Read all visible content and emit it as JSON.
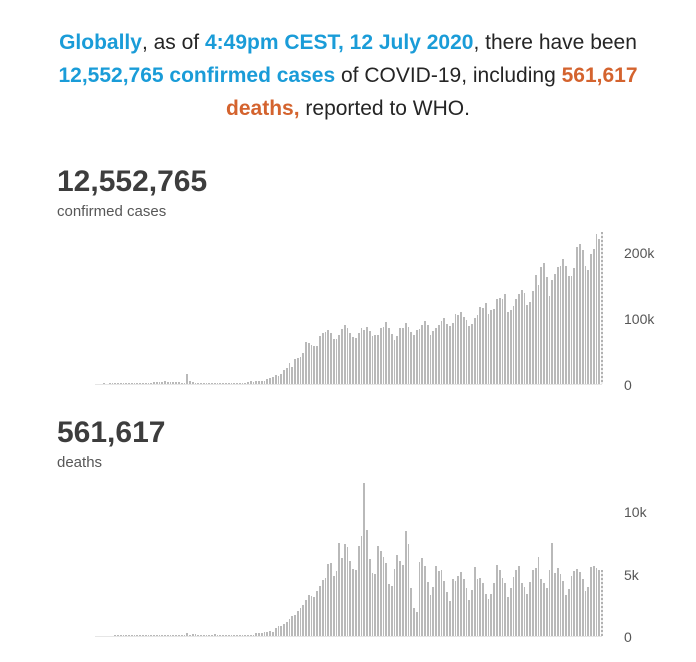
{
  "headline": {
    "segments": [
      {
        "text": "Globally",
        "style": "blue"
      },
      {
        "text": ", as of ",
        "style": "plain"
      },
      {
        "text": "4:49pm CEST, 12 July 2020",
        "style": "blue"
      },
      {
        "text": ", there have been ",
        "style": "plain"
      },
      {
        "text": "12,552,765 confirmed cases",
        "style": "blue"
      },
      {
        "text": " of COVID-19, including ",
        "style": "plain"
      },
      {
        "text": "561,617 deaths,",
        "style": "orange"
      },
      {
        "text": " reported to WHO.",
        "style": "plain"
      }
    ]
  },
  "stats": [
    {
      "value": "12,552,765",
      "label": "confirmed cases"
    },
    {
      "value": "561,617",
      "label": "deaths"
    }
  ],
  "colors": {
    "accent_blue": "#1a9cd8",
    "accent_orange": "#d4632e",
    "bar_fill": "#b9b9b9",
    "stat_text": "#3d3d3d",
    "axis_label": "#565656",
    "body_text": "#252525"
  },
  "chart_data": [
    {
      "type": "bar",
      "title": "12,552,765",
      "subtitle": "confirmed cases",
      "xlabel": "",
      "ylabel": "",
      "x_tick_labels_visible": false,
      "grid": false,
      "legend": false,
      "y_axis_side": "right",
      "ylim": [
        0,
        235000
      ],
      "y_ticks": [
        {
          "value": 0,
          "label": "0"
        },
        {
          "value": 100000,
          "label": "100k"
        },
        {
          "value": 200000,
          "label": "200k"
        }
      ],
      "last_bar_hatched": true,
      "values": [
        0,
        0,
        0,
        1,
        0,
        3,
        17,
        59,
        77,
        60,
        150,
        140,
        260,
        460,
        700,
        780,
        1750,
        1450,
        1800,
        2000,
        2100,
        2600,
        2800,
        2600,
        3200,
        3900,
        3700,
        3200,
        2700,
        3000,
        2600,
        2100,
        2000,
        15150,
        4050,
        2600,
        2200,
        2100,
        1900,
        1800,
        600,
        900,
        1000,
        700,
        600,
        500,
        900,
        1000,
        1350,
        1750,
        1750,
        1600,
        1850,
        2200,
        2250,
        2900,
        4000,
        3650,
        3900,
        4000,
        4600,
        4700,
        7500,
        9750,
        10950,
        13900,
        11500,
        15100,
        20600,
        24200,
        32000,
        26100,
        37200,
        39800,
        41600,
        46500,
        63200,
        62500,
        58700,
        57600,
        57600,
        72800,
        76600,
        79300,
        82000,
        77200,
        68800,
        68300,
        73600,
        82800,
        89700,
        85500,
        76900,
        71800,
        70100,
        76600,
        84800,
        81600,
        85700,
        81100,
        73300,
        74000,
        73900,
        84300,
        87200,
        93700,
        85000,
        76500,
        66300,
        73000,
        84800,
        84600,
        91900,
        86100,
        78800,
        74300,
        81500,
        83500,
        89300,
        95800,
        88900,
        74800,
        80300,
        84200,
        89100,
        96000,
        100000,
        91500,
        87700,
        92100,
        106000,
        104500,
        109500,
        101500,
        96400,
        88100,
        91700,
        100300,
        104500,
        116100,
        114900,
        122900,
        106000,
        111900,
        113300,
        128500,
        130400,
        128700,
        136000,
        108900,
        112200,
        118500,
        128400,
        136500,
        142600,
        137500,
        120000,
        124600,
        140700,
        166000,
        150200,
        177600,
        183000,
        161800,
        133300,
        158300,
        167000,
        177600,
        179300,
        189000,
        178300,
        163900,
        163900,
        176100,
        207900,
        212300,
        203800,
        179500,
        172500,
        196700,
        204500,
        228100,
        219200,
        230400
      ]
    },
    {
      "type": "bar",
      "title": "561,617",
      "subtitle": "deaths",
      "xlabel": "",
      "ylabel": "",
      "x_tick_labels_visible": false,
      "grid": false,
      "legend": false,
      "y_axis_side": "right",
      "ylim": [
        0,
        12500
      ],
      "y_ticks": [
        {
          "value": 0,
          "label": "0"
        },
        {
          "value": 5000,
          "label": "5k"
        },
        {
          "value": 10000,
          "label": "10k"
        }
      ],
      "last_bar_hatched": true,
      "values": [
        0,
        0,
        0,
        0,
        0,
        0,
        0,
        1,
        2,
        1,
        3,
        2,
        4,
        9,
        15,
        15,
        25,
        26,
        26,
        38,
        43,
        46,
        45,
        57,
        64,
        66,
        72,
        73,
        86,
        89,
        97,
        108,
        97,
        254,
        13,
        143,
        142,
        105,
        98,
        108,
        115,
        120,
        118,
        150,
        71,
        52,
        29,
        44,
        59,
        64,
        58,
        67,
        87,
        81,
        86,
        105,
        102,
        98,
        229,
        211,
        281,
        345,
        321,
        438,
        324,
        603,
        786,
        821,
        965,
        1095,
        1345,
        1625,
        1715,
        2005,
        2225,
        2525,
        2870,
        3290,
        3220,
        3120,
        3585,
        4020,
        4525,
        4680,
        5740,
        5855,
        4810,
        5235,
        7415,
        6245,
        7380,
        7115,
        5985,
        5395,
        5325,
        7250,
        8010,
        12240,
        8490,
        6195,
        5020,
        4995,
        7175,
        6810,
        6320,
        5870,
        4160,
        4015,
        5350,
        6455,
        6010,
        5715,
        8410,
        7390,
        3870,
        2250,
        1950,
        5950,
        6290,
        5605,
        4310,
        3260,
        3905,
        5645,
        5205,
        5250,
        4370,
        3540,
        2770,
        4600,
        4395,
        4770,
        5125,
        4580,
        3870,
        2870,
        3675,
        5510,
        4560,
        4635,
        4230,
        3340,
        2950,
        3370,
        4230,
        5680,
        5250,
        4680,
        4250,
        3140,
        3810,
        4750,
        5310,
        5580,
        4270,
        3960,
        3370,
        4340,
        5260,
        5440,
        6330,
        4540,
        4210,
        3860,
        5270,
        7480,
        5080,
        5440,
        4930,
        4390,
        3270,
        3750,
        4820,
        5210,
        5370,
        5130,
        4570,
        3640,
        3920,
        5500,
        5575,
        5440,
        5280,
        5290
      ]
    }
  ]
}
